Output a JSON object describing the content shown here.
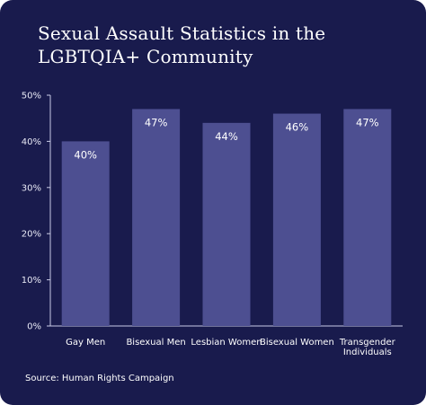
{
  "colors": {
    "background": "#191b4d",
    "bar": "#4d4f91",
    "axis": "#c9cbe6",
    "text": "#ffffff"
  },
  "source": "Source: Human Rights Campaign",
  "chart_data": {
    "type": "bar",
    "title_lines": [
      "Sexual Assault Statistics in the",
      "LGBTQIA+ Community"
    ],
    "categories": [
      [
        "Gay Men"
      ],
      [
        "Bisexual Men"
      ],
      [
        "Lesbian Women"
      ],
      [
        "Bisexual Women"
      ],
      [
        "Transgender",
        "Individuals"
      ]
    ],
    "values": [
      40,
      47,
      44,
      46,
      47
    ],
    "data_labels": [
      "40%",
      "47%",
      "44%",
      "46%",
      "47%"
    ],
    "yticks": [
      0,
      10,
      20,
      30,
      40,
      50
    ],
    "ytick_labels": [
      "0%",
      "10%",
      "20%",
      "30%",
      "40%",
      "50%"
    ],
    "ylim": [
      0,
      50
    ],
    "grid": false,
    "legend": "none"
  }
}
